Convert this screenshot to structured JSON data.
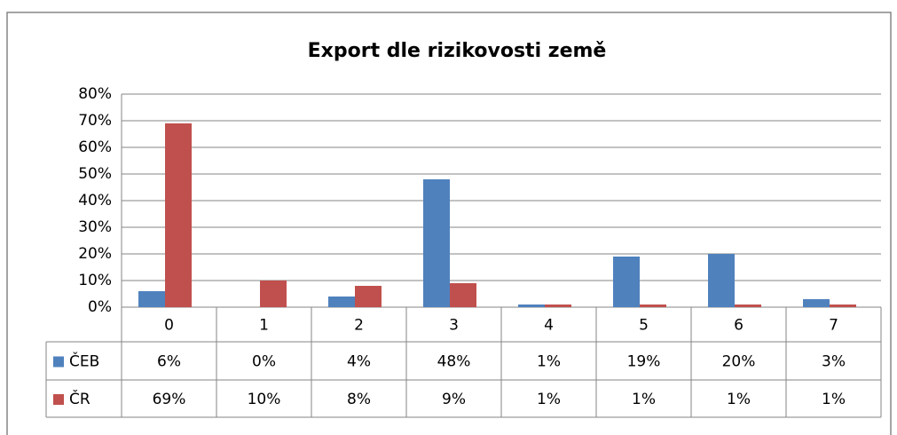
{
  "chart_data": {
    "type": "bar",
    "title": "Export dle rizikovosti země",
    "categories": [
      "0",
      "1",
      "2",
      "3",
      "4",
      "5",
      "6",
      "7"
    ],
    "series": [
      {
        "name": "ČEB",
        "color": "#4f81bd",
        "values": [
          6,
          0,
          4,
          48,
          1,
          19,
          20,
          3
        ],
        "value_labels": [
          "6%",
          "0%",
          "4%",
          "48%",
          "1%",
          "19%",
          "20%",
          "3%"
        ]
      },
      {
        "name": "ČR",
        "color": "#c0504d",
        "values": [
          69,
          10,
          8,
          9,
          1,
          1,
          1,
          1
        ],
        "value_labels": [
          "69%",
          "10%",
          "8%",
          "9%",
          "1%",
          "1%",
          "1%",
          "1%"
        ]
      }
    ],
    "ylim": [
      0,
      80
    ],
    "yticks": [
      {
        "value": 0,
        "label": "0%"
      },
      {
        "value": 10,
        "label": "10%"
      },
      {
        "value": 20,
        "label": "20%"
      },
      {
        "value": 30,
        "label": "30%"
      },
      {
        "value": 40,
        "label": "40%"
      },
      {
        "value": 50,
        "label": "50%"
      },
      {
        "value": 60,
        "label": "60%"
      },
      {
        "value": 70,
        "label": "70%"
      },
      {
        "value": 80,
        "label": "80%"
      }
    ],
    "grid": true
  }
}
